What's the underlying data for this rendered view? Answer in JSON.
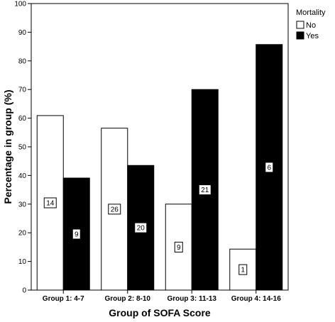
{
  "chart_data": {
    "type": "bar",
    "categories": [
      "Group 1: 4-7",
      "Group 2: 8-10",
      "Group 3: 11-13",
      "Group 4: 14-16"
    ],
    "series": [
      {
        "name": "No",
        "values": [
          60.9,
          56.5,
          30.0,
          14.3
        ],
        "counts": [
          "14",
          "26",
          "9",
          "1"
        ],
        "color": "#ffffff"
      },
      {
        "name": "Yes",
        "values": [
          39.1,
          43.5,
          70.0,
          85.7
        ],
        "counts": [
          "9",
          "20",
          "21",
          "6"
        ],
        "color": "#000000"
      }
    ],
    "xlabel": "Group of SOFA Score",
    "ylabel": "Percentage in group (%)",
    "ylim": [
      0,
      100
    ],
    "yticks": [
      "0",
      "10",
      "20",
      "30",
      "40",
      "50",
      "60",
      "70",
      "80",
      "90",
      "100"
    ],
    "legend": {
      "title": "Mortality",
      "position": "top-right"
    },
    "grid": false
  }
}
